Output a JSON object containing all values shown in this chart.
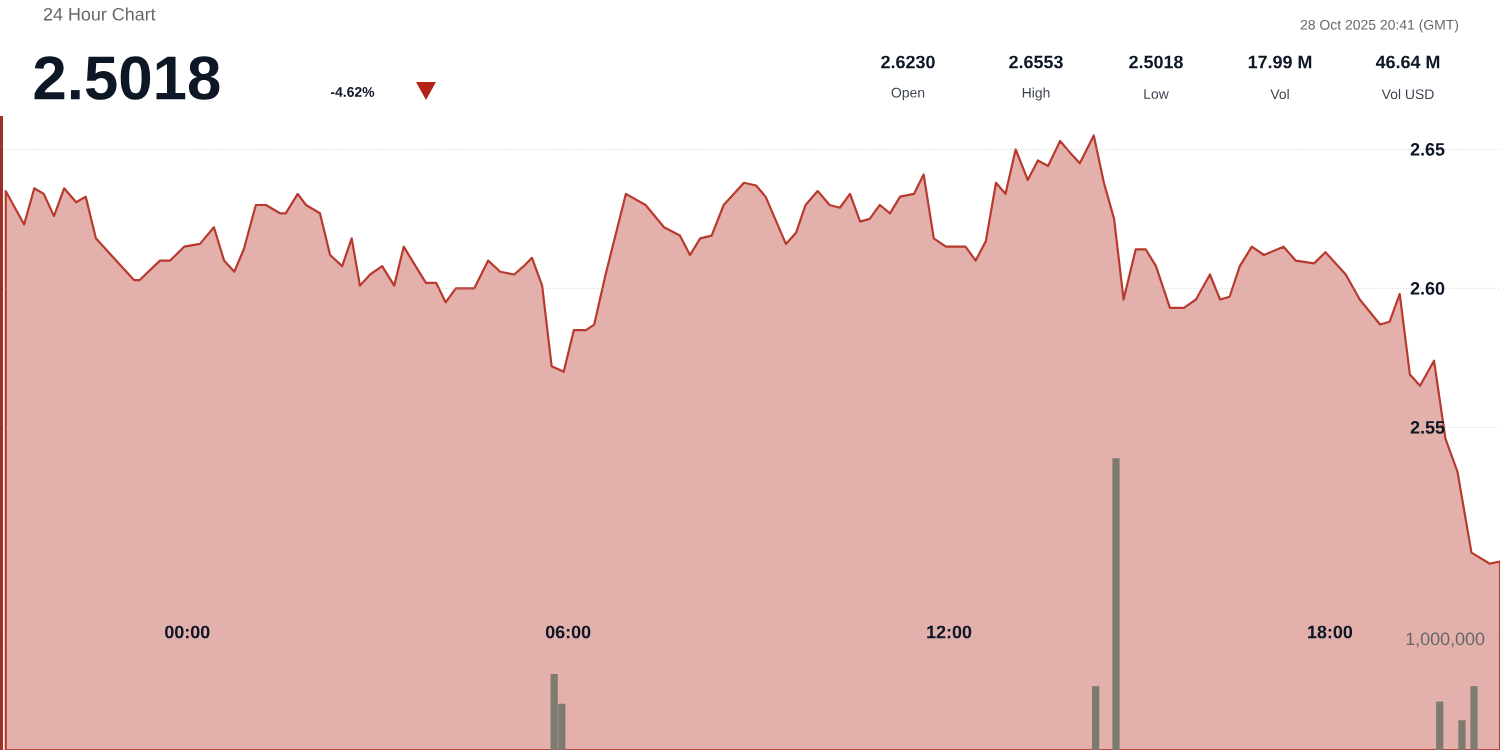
{
  "chart_data": {
    "type": "area",
    "title": "24 Hour Chart",
    "annotations": [
      "2.5018",
      "-4.62%",
      "28 Oct 2025 20:41 (GMT)",
      "2.6230",
      "Open",
      "2.6553",
      "High",
      "2.5018",
      "Low",
      "17.99 M",
      "Vol",
      "46.64 M",
      "Vol USD"
    ],
    "xlim": [
      -2.95,
      20.68
    ],
    "xticks": [
      {
        "value": 0,
        "label": "00:00"
      },
      {
        "value": 6,
        "label": "06:00"
      },
      {
        "value": 12,
        "label": "12:00"
      },
      {
        "value": 18,
        "label": "18:00"
      }
    ],
    "ylim": [
      2.434,
      2.662
    ],
    "yticks": [
      {
        "value": 2.55,
        "label": "2.55"
      },
      {
        "value": 2.6,
        "label": "2.60"
      },
      {
        "value": 2.65,
        "label": "2.65"
      }
    ],
    "y2lim": [
      0,
      5760000
    ],
    "y2ticks": [
      {
        "value": 0,
        "label": null
      },
      {
        "value": 1000000,
        "label": "1,000,000"
      }
    ],
    "grid": "y",
    "series": [
      {
        "color": "#b83a2e",
        "x": [
          -2.86,
          -2.57,
          -2.41,
          -2.26,
          -2.1,
          -1.94,
          -1.75,
          -1.6,
          -1.44,
          -0.84,
          -0.75,
          -0.43,
          -0.27,
          -0.05,
          0.2,
          0.42,
          0.58,
          0.74,
          0.89,
          1.08,
          1.24,
          1.46,
          1.55,
          1.74,
          1.87,
          2.09,
          2.25,
          2.44,
          2.59,
          2.72,
          2.88,
          3.07,
          3.26,
          3.41,
          3.57,
          3.76,
          3.92,
          4.07,
          4.23,
          4.52,
          4.74,
          4.93,
          5.15,
          5.3,
          5.43,
          5.59,
          5.74,
          5.93,
          6.09,
          6.28,
          6.41,
          6.59,
          6.91,
          7.22,
          7.51,
          7.76,
          7.92,
          8.08,
          8.26,
          8.45,
          8.77,
          8.96,
          9.11,
          9.43,
          9.59,
          9.74,
          9.93,
          10.12,
          10.28,
          10.44,
          10.6,
          10.75,
          10.91,
          11.07,
          11.23,
          11.45,
          11.6,
          11.76,
          11.95,
          12.17,
          12.26,
          12.42,
          12.58,
          12.74,
          12.89,
          13.05,
          13.24,
          13.4,
          13.56,
          13.75,
          13.9,
          14.06,
          14.28,
          14.44,
          14.6,
          14.75,
          14.94,
          15.1,
          15.26,
          15.48,
          15.7,
          15.89,
          16.11,
          16.27,
          16.42,
          16.58,
          16.77,
          16.96,
          17.27,
          17.46,
          17.75,
          17.93,
          18.25,
          18.47,
          18.79,
          18.94,
          19.1,
          19.26,
          19.42,
          19.64,
          19.82,
          20.01,
          20.23,
          20.52,
          20.68
        ],
        "values": [
          2.635,
          2.623,
          2.636,
          2.634,
          2.626,
          2.636,
          2.631,
          2.633,
          2.618,
          2.603,
          2.603,
          2.61,
          2.61,
          2.615,
          2.616,
          2.622,
          2.61,
          2.606,
          2.614,
          2.63,
          2.63,
          2.627,
          2.627,
          2.634,
          2.63,
          2.627,
          2.612,
          2.608,
          2.618,
          2.601,
          2.605,
          2.608,
          2.601,
          2.615,
          2.609,
          2.602,
          2.602,
          2.595,
          2.6,
          2.6,
          2.61,
          2.606,
          2.605,
          2.608,
          2.611,
          2.601,
          2.572,
          2.57,
          2.585,
          2.585,
          2.587,
          2.605,
          2.634,
          2.63,
          2.622,
          2.619,
          2.612,
          2.618,
          2.619,
          2.63,
          2.638,
          2.637,
          2.633,
          2.616,
          2.62,
          2.63,
          2.635,
          2.63,
          2.629,
          2.634,
          2.624,
          2.625,
          2.63,
          2.627,
          2.633,
          2.634,
          2.641,
          2.618,
          2.615,
          2.615,
          2.615,
          2.61,
          2.617,
          2.638,
          2.634,
          2.65,
          2.639,
          2.646,
          2.644,
          2.653,
          2.649,
          2.645,
          2.655,
          2.638,
          2.625,
          2.596,
          2.614,
          2.614,
          2.608,
          2.593,
          2.593,
          2.596,
          2.605,
          2.596,
          2.597,
          2.608,
          2.615,
          2.612,
          2.615,
          2.61,
          2.609,
          2.613,
          2.605,
          2.596,
          2.587,
          2.588,
          2.598,
          2.569,
          2.565,
          2.574,
          2.546,
          2.534,
          2.505,
          2.501,
          2.5018
        ]
      },
      {
        "type": "bar",
        "axis": "y2",
        "color": "#7d7a70",
        "x": [
          5.78,
          5.9,
          14.31,
          14.63,
          19.73,
          20.08,
          20.27
        ],
        "values": [
          690000,
          420000,
          580000,
          2650000,
          440000,
          270000,
          580000
        ]
      }
    ]
  }
}
